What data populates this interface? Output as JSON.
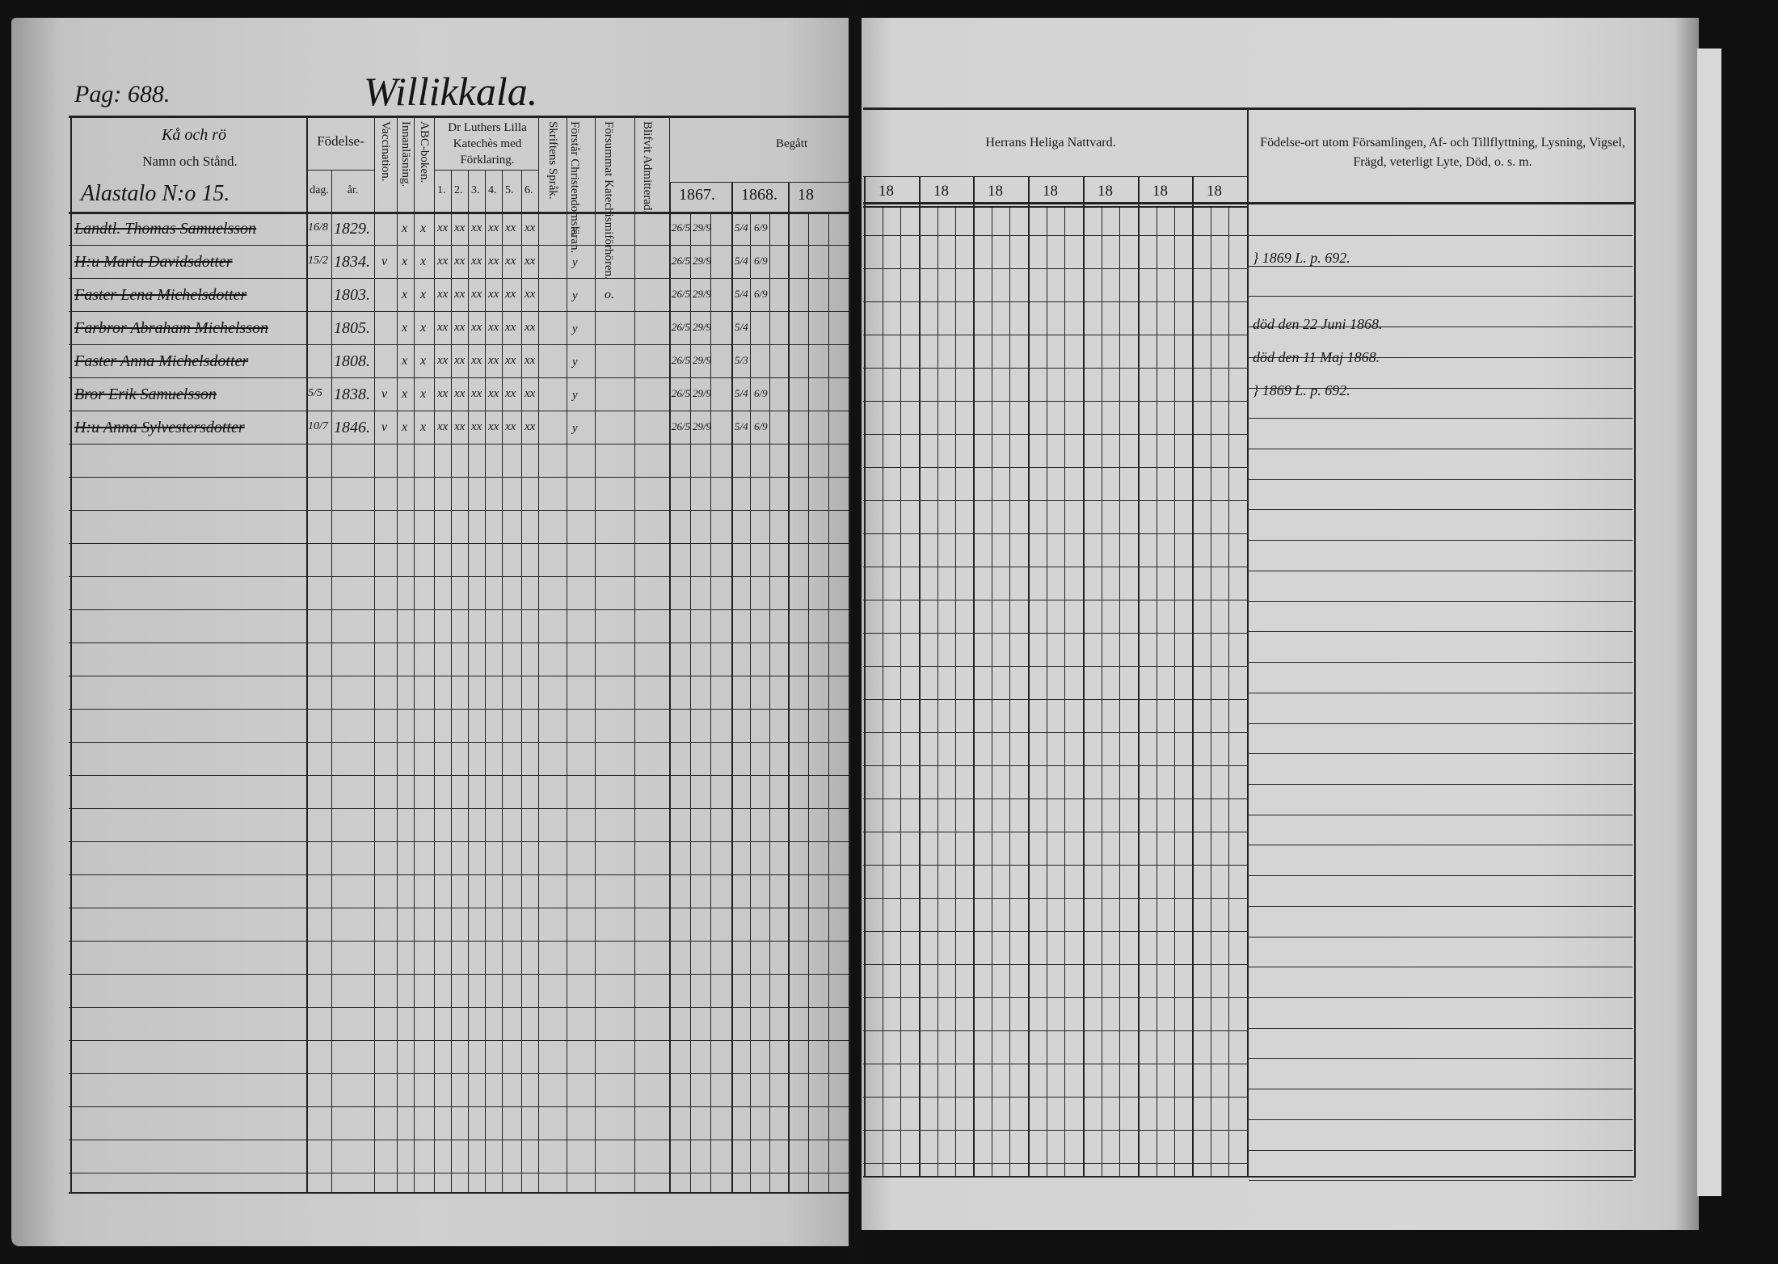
{
  "page_label": "Pag: 688.",
  "village": "Willikkala.",
  "farm": "Alastalo N:o 15.",
  "left_header": {
    "name_note": "Kå och rö",
    "name_col": "Namn och Stånd.",
    "birth": "Födelse-",
    "dag": "dag.",
    "ar": "år.",
    "vaccination": "Vaccination.",
    "innanlasning": "Innanläsning.",
    "abc": "ABC-boken.",
    "catechism": "Dr Luthers Lilla Katechès med Förklaring.",
    "catechism_parts": [
      "1.",
      "2.",
      "3.",
      "4.",
      "5.",
      "6."
    ],
    "skriftens": "Skriftens Språk.",
    "forstar": "Förstår Christendomsläran.",
    "forsummat": "Försummat Katechismiförhören.",
    "blifvit": "Blifvit Admitterad.",
    "begatt": "Begått",
    "years": [
      "1867.",
      "1868.",
      "18"
    ]
  },
  "right_header": {
    "nattvard": "Herrans Heliga Nattvard.",
    "years": [
      "18",
      "18",
      "18",
      "18",
      "18",
      "18",
      "18"
    ],
    "remarks": "Födelse-ort utom Församlingen, Af- och Tillflyttning, Lysning, Vigsel, Frägd, veterligt Lyte, Död, o. s. m."
  },
  "rows": [
    {
      "name": "Landtl. Thomas Samuelsson",
      "dag": "16/8",
      "ar": "1829.",
      "vacc": "",
      "innan": "x",
      "abc": "x",
      "cat": [
        "xx",
        "xx",
        "xx",
        "xx",
        "xx",
        "xx"
      ],
      "skrift": "y",
      "forstar": "",
      "b1": [
        "26/5",
        "29/9"
      ],
      "b2": [
        "5/4",
        "6/9"
      ]
    },
    {
      "name": "H:u Maria Davidsdotter",
      "dag": "15/2",
      "ar": "1834.",
      "vacc": "v",
      "innan": "x",
      "abc": "x",
      "cat": [
        "xx",
        "xx",
        "xx",
        "xx",
        "xx",
        "xx"
      ],
      "skrift": "y",
      "forstar": "",
      "b1": [
        "26/5",
        "29/9"
      ],
      "b2": [
        "5/4",
        "6/9"
      ]
    },
    {
      "name": "Faster Lena Michelsdotter",
      "dag": "",
      "ar": "1803.",
      "vacc": "",
      "innan": "x",
      "abc": "x",
      "cat": [
        "xx",
        "xx",
        "xx",
        "xx",
        "xx",
        "xx"
      ],
      "skrift": "y",
      "forstar": "o.",
      "b1": [
        "26/5",
        "29/9"
      ],
      "b2": [
        "5/4",
        "6/9"
      ]
    },
    {
      "name": "Farbror Abraham Michelsson",
      "dag": "",
      "ar": "1805.",
      "vacc": "",
      "innan": "x",
      "abc": "x",
      "cat": [
        "xx",
        "xx",
        "xx",
        "xx",
        "xx",
        "xx"
      ],
      "skrift": "y",
      "forstar": "",
      "b1": [
        "26/5",
        "29/9"
      ],
      "b2": [
        "5/4",
        ""
      ]
    },
    {
      "name": "Faster Anna Michelsdotter",
      "dag": "",
      "ar": "1808.",
      "vacc": "",
      "innan": "x",
      "abc": "x",
      "cat": [
        "xx",
        "xx",
        "xx",
        "xx",
        "xx",
        "xx"
      ],
      "skrift": "y",
      "forstar": "",
      "b1": [
        "26/5",
        "29/9"
      ],
      "b2": [
        "5/3",
        ""
      ]
    },
    {
      "name": "Bror Erik Samuelsson",
      "dag": "5/5",
      "ar": "1838.",
      "vacc": "v",
      "innan": "x",
      "abc": "x",
      "cat": [
        "xx",
        "xx",
        "xx",
        "xx",
        "xx",
        "xx"
      ],
      "skrift": "y",
      "forstar": "",
      "b1": [
        "26/5",
        "29/9"
      ],
      "b2": [
        "5/4",
        "6/9"
      ]
    },
    {
      "name": "H:u Anna Sylvestersdotter",
      "dag": "10/7",
      "ar": "1846.",
      "vacc": "v",
      "innan": "x",
      "abc": "x",
      "cat": [
        "xx",
        "xx",
        "xx",
        "xx",
        "xx",
        "xx"
      ],
      "skrift": "y",
      "forstar": "",
      "b1": [
        "26/5",
        "29/9"
      ],
      "b2": [
        "5/4",
        "6/9"
      ]
    }
  ],
  "remarks": [
    {
      "row": 2,
      "text": "} 1869 L. p. 692."
    },
    {
      "row": 4,
      "text": "död den 22 Juni 1868."
    },
    {
      "row": 5,
      "text": "död den 11 Maj 1868."
    },
    {
      "row": 6,
      "text": "} 1869 L. p. 692."
    }
  ]
}
